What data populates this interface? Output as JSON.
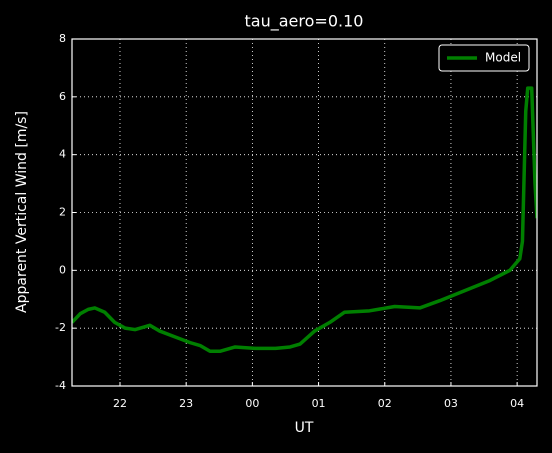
{
  "chart_data": {
    "type": "line",
    "title": "tau_aero=0.10",
    "x_label": "UT",
    "y_label": "Apparent Vertical Wind [m/s]",
    "x": [
      21.275,
      21.4,
      21.52,
      21.62,
      21.77,
      21.92,
      22.08,
      22.23,
      22.38,
      22.45,
      22.6,
      22.83,
      23.06,
      23.21,
      23.36,
      23.51,
      23.74,
      24.05,
      24.35,
      24.57,
      24.72,
      24.94,
      25.17,
      25.39,
      25.77,
      26.15,
      26.53,
      26.83,
      27.21,
      27.59,
      27.89,
      28.04,
      28.08,
      28.13,
      28.16,
      28.22,
      28.27,
      28.3
    ],
    "series": [
      {
        "name": "Model",
        "color": "#007f00",
        "values": [
          -1.8,
          -1.5,
          -1.35,
          -1.3,
          -1.45,
          -1.8,
          -2.0,
          -2.05,
          -1.95,
          -1.9,
          -2.1,
          -2.3,
          -2.5,
          -2.6,
          -2.8,
          -2.8,
          -2.65,
          -2.7,
          -2.7,
          -2.65,
          -2.55,
          -2.1,
          -1.8,
          -1.45,
          -1.4,
          -1.25,
          -1.3,
          -1.05,
          -0.7,
          -0.35,
          0.0,
          0.4,
          1.0,
          5.5,
          6.3,
          6.3,
          3.0,
          1.8
        ]
      }
    ],
    "xlim": [
      21.275,
      28.3
    ],
    "ylim": [
      -4,
      8
    ],
    "xticks": [
      22,
      23,
      {
        "value": 24,
        "label": "00"
      },
      {
        "value": 25,
        "label": "01"
      },
      {
        "value": 26,
        "label": "02"
      },
      {
        "value": 27,
        "label": "03"
      },
      {
        "value": 28,
        "label": "04"
      }
    ],
    "yticks": [
      -4,
      -2,
      0,
      2,
      4,
      6,
      8
    ],
    "grid": true,
    "legend": "upper-right"
  }
}
